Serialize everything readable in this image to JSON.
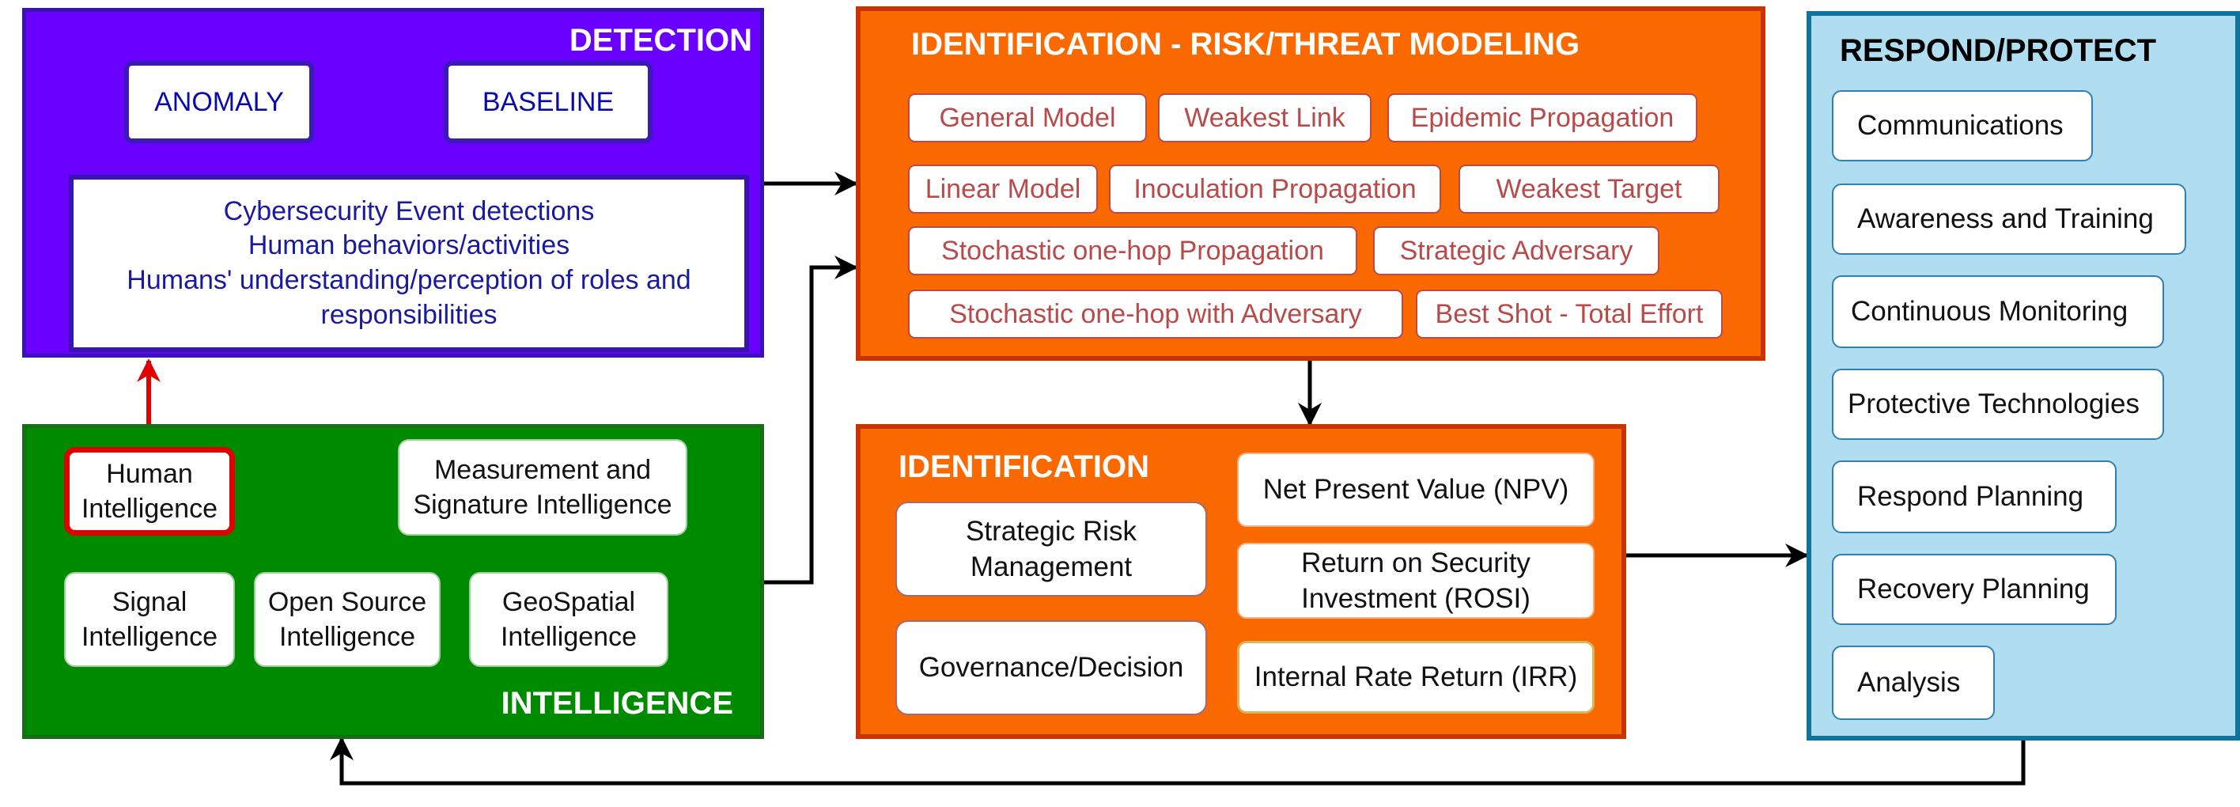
{
  "colors": {
    "detection_fill": "#6a00ff",
    "risk_fill": "#fa6800",
    "intelligence_fill": "#008a00",
    "identification_fill": "#fa6800",
    "respond_fill": "#b1ddf0",
    "highlight_border": "#e00000"
  },
  "detection": {
    "title": "DETECTION",
    "tags": [
      "ANOMALY",
      "BASELINE"
    ],
    "lines": [
      "Cybersecurity Event detections",
      "Human behaviors/activities",
      "Humans' understanding/perception of roles and",
      "responsibilities"
    ]
  },
  "risk_modeling": {
    "title": "IDENTIFICATION - RISK/THREAT MODELING",
    "models": [
      "General Model",
      "Weakest Link",
      "Epidemic Propagation",
      "Linear Model",
      "Inoculation Propagation",
      "Weakest Target",
      "Stochastic one-hop Propagation",
      "Strategic Adversary",
      "Stochastic one-hop with Adversary",
      "Best Shot - Total Effort"
    ]
  },
  "intelligence": {
    "title": "INTELLIGENCE",
    "human": [
      "Human",
      "Intelligence"
    ],
    "measurement": [
      "Measurement and",
      "Signature Intelligence"
    ],
    "signal": [
      "Signal",
      "Intelligence"
    ],
    "open_source": [
      "Open Source",
      "Intelligence"
    ],
    "geospatial": [
      "GeoSpatial",
      "Intelligence"
    ]
  },
  "identification": {
    "title": "IDENTIFICATION",
    "strategic": [
      "Strategic Risk",
      "Management"
    ],
    "governance": "Governance/Decision",
    "npv": "Net Present Value (NPV)",
    "rosi": [
      "Return on Security",
      "Investment (ROSI)"
    ],
    "irr": "Internal Rate Return (IRR)"
  },
  "respond": {
    "title": "RESPOND/PROTECT",
    "items": [
      "Communications",
      "Awareness and Training",
      "Continuous Monitoring",
      "Protective Technologies",
      "Respond Planning",
      "Recovery Planning",
      "Analysis"
    ]
  }
}
